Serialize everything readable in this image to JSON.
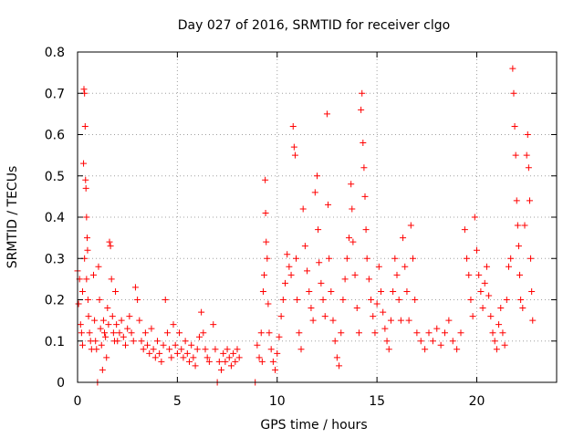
{
  "chart_data": {
    "type": "scatter",
    "title": "Day 027 of 2016, SRMTID for receiver clgo",
    "xlabel": "GPS time / hours",
    "ylabel": "SRMTID / TECUs",
    "xlim": [
      0,
      24
    ],
    "ylim": [
      0,
      0.8
    ],
    "x_ticks": [
      0,
      5,
      10,
      15,
      20
    ],
    "x_tick_labels": [
      "0",
      "5",
      "10",
      "15",
      "20"
    ],
    "y_ticks": [
      0,
      0.1,
      0.2,
      0.3,
      0.4,
      0.5,
      0.6,
      0.7,
      0.8
    ],
    "y_tick_labels": [
      "0",
      "0.1",
      "0.2",
      "0.3",
      "0.4",
      "0.5",
      "0.6",
      "0.7",
      "0.8"
    ],
    "grid": true,
    "marker": "+",
    "color": "#ff0000",
    "series": [
      {
        "name": "SRMTID",
        "points": [
          [
            0.0,
            0.27
          ],
          [
            0.05,
            0.19
          ],
          [
            0.1,
            0.25
          ],
          [
            0.15,
            0.14
          ],
          [
            0.2,
            0.12
          ],
          [
            0.25,
            0.09
          ],
          [
            0.3,
            0.53
          ],
          [
            0.32,
            0.71
          ],
          [
            0.35,
            0.7
          ],
          [
            0.38,
            0.62
          ],
          [
            0.4,
            0.49
          ],
          [
            0.42,
            0.47
          ],
          [
            0.45,
            0.4
          ],
          [
            0.48,
            0.35
          ],
          [
            0.5,
            0.32
          ],
          [
            0.52,
            0.2
          ],
          [
            0.55,
            0.16
          ],
          [
            0.6,
            0.12
          ],
          [
            0.65,
            0.1
          ],
          [
            0.7,
            0.08
          ],
          [
            0.25,
            0.22
          ],
          [
            0.35,
            0.3
          ],
          [
            0.45,
            0.25
          ],
          [
            0.8,
            0.26
          ],
          [
            0.85,
            0.15
          ],
          [
            0.9,
            0.1
          ],
          [
            0.95,
            0.08
          ],
          [
            1.0,
            0.0
          ],
          [
            1.05,
            0.28
          ],
          [
            1.1,
            0.2
          ],
          [
            1.15,
            0.13
          ],
          [
            1.2,
            0.09
          ],
          [
            1.25,
            0.03
          ],
          [
            1.3,
            0.15
          ],
          [
            1.35,
            0.12
          ],
          [
            1.4,
            0.11
          ],
          [
            1.45,
            0.06
          ],
          [
            1.5,
            0.18
          ],
          [
            1.55,
            0.14
          ],
          [
            1.6,
            0.34
          ],
          [
            1.65,
            0.33
          ],
          [
            1.7,
            0.25
          ],
          [
            1.75,
            0.16
          ],
          [
            1.8,
            0.12
          ],
          [
            1.85,
            0.1
          ],
          [
            1.9,
            0.22
          ],
          [
            1.95,
            0.14
          ],
          [
            2.0,
            0.1
          ],
          [
            2.1,
            0.12
          ],
          [
            2.2,
            0.15
          ],
          [
            2.3,
            0.11
          ],
          [
            2.4,
            0.09
          ],
          [
            2.5,
            0.13
          ],
          [
            2.6,
            0.16
          ],
          [
            2.7,
            0.12
          ],
          [
            2.8,
            0.1
          ],
          [
            2.9,
            0.23
          ],
          [
            3.0,
            0.2
          ],
          [
            3.1,
            0.15
          ],
          [
            3.2,
            0.1
          ],
          [
            3.3,
            0.08
          ],
          [
            3.4,
            0.12
          ],
          [
            3.5,
            0.09
          ],
          [
            3.6,
            0.07
          ],
          [
            3.7,
            0.13
          ],
          [
            3.8,
            0.08
          ],
          [
            3.9,
            0.06
          ],
          [
            4.0,
            0.1
          ],
          [
            4.1,
            0.07
          ],
          [
            4.2,
            0.05
          ],
          [
            4.3,
            0.09
          ],
          [
            4.4,
            0.2
          ],
          [
            4.5,
            0.12
          ],
          [
            4.6,
            0.08
          ],
          [
            4.7,
            0.06
          ],
          [
            4.8,
            0.14
          ],
          [
            4.9,
            0.09
          ],
          [
            5.0,
            0.07
          ],
          [
            5.1,
            0.12
          ],
          [
            5.2,
            0.08
          ],
          [
            5.3,
            0.06
          ],
          [
            5.4,
            0.1
          ],
          [
            5.5,
            0.07
          ],
          [
            5.6,
            0.05
          ],
          [
            5.7,
            0.09
          ],
          [
            5.8,
            0.06
          ],
          [
            5.9,
            0.04
          ],
          [
            6.0,
            0.08
          ],
          [
            6.1,
            0.11
          ],
          [
            6.2,
            0.17
          ],
          [
            6.3,
            0.12
          ],
          [
            6.4,
            0.08
          ],
          [
            6.5,
            0.06
          ],
          [
            6.6,
            0.05
          ],
          [
            6.8,
            0.14
          ],
          [
            6.9,
            0.08
          ],
          [
            7.0,
            0.0
          ],
          [
            7.1,
            0.05
          ],
          [
            7.2,
            0.03
          ],
          [
            7.3,
            0.07
          ],
          [
            7.4,
            0.05
          ],
          [
            7.5,
            0.08
          ],
          [
            7.6,
            0.06
          ],
          [
            7.7,
            0.04
          ],
          [
            7.8,
            0.07
          ],
          [
            7.9,
            0.05
          ],
          [
            8.0,
            0.08
          ],
          [
            8.1,
            0.06
          ],
          [
            8.9,
            0.0
          ],
          [
            9.0,
            0.09
          ],
          [
            9.1,
            0.06
          ],
          [
            9.2,
            0.12
          ],
          [
            9.25,
            0.05
          ],
          [
            9.3,
            0.22
          ],
          [
            9.35,
            0.26
          ],
          [
            9.4,
            0.49
          ],
          [
            9.42,
            0.41
          ],
          [
            9.45,
            0.34
          ],
          [
            9.5,
            0.3
          ],
          [
            9.55,
            0.19
          ],
          [
            9.6,
            0.12
          ],
          [
            9.7,
            0.08
          ],
          [
            9.8,
            0.05
          ],
          [
            9.9,
            0.03
          ],
          [
            10.0,
            0.07
          ],
          [
            10.1,
            0.11
          ],
          [
            10.2,
            0.16
          ],
          [
            10.3,
            0.2
          ],
          [
            10.4,
            0.24
          ],
          [
            10.5,
            0.31
          ],
          [
            10.6,
            0.28
          ],
          [
            10.7,
            0.26
          ],
          [
            10.8,
            0.62
          ],
          [
            10.85,
            0.57
          ],
          [
            10.9,
            0.55
          ],
          [
            10.95,
            0.3
          ],
          [
            11.0,
            0.2
          ],
          [
            11.1,
            0.12
          ],
          [
            11.2,
            0.08
          ],
          [
            11.3,
            0.42
          ],
          [
            11.4,
            0.33
          ],
          [
            11.5,
            0.27
          ],
          [
            11.6,
            0.22
          ],
          [
            11.7,
            0.18
          ],
          [
            11.8,
            0.15
          ],
          [
            11.9,
            0.46
          ],
          [
            12.0,
            0.5
          ],
          [
            12.05,
            0.37
          ],
          [
            12.1,
            0.29
          ],
          [
            12.2,
            0.24
          ],
          [
            12.3,
            0.2
          ],
          [
            12.4,
            0.16
          ],
          [
            12.5,
            0.65
          ],
          [
            12.55,
            0.43
          ],
          [
            12.6,
            0.3
          ],
          [
            12.7,
            0.22
          ],
          [
            12.8,
            0.15
          ],
          [
            12.9,
            0.1
          ],
          [
            13.0,
            0.06
          ],
          [
            13.1,
            0.04
          ],
          [
            13.2,
            0.12
          ],
          [
            13.3,
            0.2
          ],
          [
            13.4,
            0.25
          ],
          [
            13.5,
            0.3
          ],
          [
            13.6,
            0.35
          ],
          [
            13.7,
            0.48
          ],
          [
            13.75,
            0.42
          ],
          [
            13.8,
            0.34
          ],
          [
            13.9,
            0.26
          ],
          [
            14.0,
            0.18
          ],
          [
            14.1,
            0.12
          ],
          [
            14.2,
            0.66
          ],
          [
            14.25,
            0.7
          ],
          [
            14.3,
            0.58
          ],
          [
            14.35,
            0.52
          ],
          [
            14.4,
            0.45
          ],
          [
            14.45,
            0.37
          ],
          [
            14.5,
            0.3
          ],
          [
            14.6,
            0.25
          ],
          [
            14.7,
            0.2
          ],
          [
            14.8,
            0.16
          ],
          [
            14.9,
            0.12
          ],
          [
            15.0,
            0.19
          ],
          [
            15.1,
            0.28
          ],
          [
            15.2,
            0.22
          ],
          [
            15.3,
            0.17
          ],
          [
            15.4,
            0.13
          ],
          [
            15.5,
            0.1
          ],
          [
            15.6,
            0.08
          ],
          [
            15.7,
            0.15
          ],
          [
            15.8,
            0.22
          ],
          [
            15.9,
            0.3
          ],
          [
            16.0,
            0.26
          ],
          [
            16.1,
            0.2
          ],
          [
            16.2,
            0.15
          ],
          [
            16.3,
            0.35
          ],
          [
            16.4,
            0.28
          ],
          [
            16.5,
            0.22
          ],
          [
            16.6,
            0.15
          ],
          [
            16.7,
            0.38
          ],
          [
            16.8,
            0.3
          ],
          [
            16.9,
            0.2
          ],
          [
            17.0,
            0.12
          ],
          [
            17.2,
            0.1
          ],
          [
            17.4,
            0.08
          ],
          [
            17.6,
            0.12
          ],
          [
            17.8,
            0.1
          ],
          [
            18.0,
            0.13
          ],
          [
            18.2,
            0.09
          ],
          [
            18.4,
            0.12
          ],
          [
            18.6,
            0.15
          ],
          [
            18.8,
            0.1
          ],
          [
            19.0,
            0.08
          ],
          [
            19.2,
            0.12
          ],
          [
            19.4,
            0.37
          ],
          [
            19.5,
            0.3
          ],
          [
            19.6,
            0.26
          ],
          [
            19.7,
            0.2
          ],
          [
            19.8,
            0.16
          ],
          [
            19.9,
            0.4
          ],
          [
            20.0,
            0.32
          ],
          [
            20.1,
            0.26
          ],
          [
            20.2,
            0.22
          ],
          [
            20.3,
            0.18
          ],
          [
            20.4,
            0.24
          ],
          [
            20.5,
            0.28
          ],
          [
            20.6,
            0.21
          ],
          [
            20.7,
            0.16
          ],
          [
            20.8,
            0.12
          ],
          [
            20.9,
            0.1
          ],
          [
            21.0,
            0.08
          ],
          [
            21.1,
            0.14
          ],
          [
            21.2,
            0.18
          ],
          [
            21.3,
            0.12
          ],
          [
            21.4,
            0.09
          ],
          [
            21.5,
            0.2
          ],
          [
            21.6,
            0.28
          ],
          [
            21.7,
            0.3
          ],
          [
            21.8,
            0.76
          ],
          [
            21.85,
            0.7
          ],
          [
            21.9,
            0.62
          ],
          [
            21.95,
            0.55
          ],
          [
            22.0,
            0.44
          ],
          [
            22.05,
            0.38
          ],
          [
            22.1,
            0.33
          ],
          [
            22.15,
            0.26
          ],
          [
            22.2,
            0.2
          ],
          [
            22.3,
            0.18
          ],
          [
            22.4,
            0.38
          ],
          [
            22.5,
            0.55
          ],
          [
            22.55,
            0.6
          ],
          [
            22.6,
            0.52
          ],
          [
            22.65,
            0.44
          ],
          [
            22.7,
            0.3
          ],
          [
            22.75,
            0.22
          ],
          [
            22.8,
            0.15
          ]
        ]
      }
    ]
  }
}
